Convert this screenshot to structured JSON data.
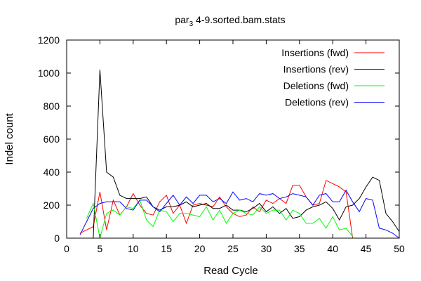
{
  "chart_data": {
    "type": "line",
    "title": "par_3 4-9.sorted.bam.stats",
    "title_main": "par",
    "title_sub": "3",
    "title_rest": " 4-9.sorted.bam.stats",
    "xlabel": "Read Cycle",
    "ylabel": "Indel count",
    "xlim": [
      0,
      50
    ],
    "ylim": [
      0,
      1200
    ],
    "x_ticks": [
      0,
      5,
      10,
      15,
      20,
      25,
      30,
      35,
      40,
      45,
      50
    ],
    "y_ticks": [
      0,
      200,
      400,
      600,
      800,
      1000,
      1200
    ],
    "grid": false,
    "legend_position": "top-right",
    "series": [
      {
        "name": "Insertions (fwd)",
        "color": "#ff0000",
        "x": [
          2,
          3,
          4,
          5,
          6,
          7,
          8,
          9,
          10,
          11,
          12,
          13,
          14,
          15,
          16,
          17,
          18,
          19,
          20,
          21,
          22,
          23,
          24,
          25,
          26,
          27,
          28,
          29,
          30,
          31,
          32,
          33,
          34,
          35,
          36,
          37,
          38,
          39,
          40,
          41,
          42,
          43
        ],
        "y": [
          30,
          50,
          70,
          280,
          50,
          230,
          140,
          190,
          270,
          200,
          150,
          140,
          220,
          260,
          150,
          200,
          90,
          200,
          210,
          200,
          190,
          250,
          190,
          150,
          130,
          140,
          190,
          160,
          230,
          210,
          240,
          210,
          320,
          320,
          250,
          200,
          210,
          350,
          330,
          310,
          280,
          0
        ]
      },
      {
        "name": "Insertions (rev)",
        "color": "#000000",
        "x": [
          4,
          5,
          6,
          7,
          8,
          9,
          10,
          11,
          12,
          13,
          14,
          15,
          16,
          17,
          18,
          19,
          20,
          21,
          22,
          23,
          24,
          25,
          26,
          27,
          28,
          29,
          30,
          31,
          32,
          33,
          34,
          35,
          36,
          37,
          38,
          39,
          40,
          41,
          42,
          43,
          44,
          45,
          46,
          47,
          48,
          49,
          50
        ],
        "y": [
          0,
          1020,
          400,
          370,
          260,
          240,
          240,
          240,
          250,
          190,
          170,
          190,
          190,
          200,
          220,
          190,
          200,
          210,
          180,
          180,
          200,
          170,
          170,
          160,
          180,
          210,
          160,
          190,
          150,
          180,
          120,
          130,
          170,
          190,
          200,
          220,
          180,
          110,
          190,
          200,
          240,
          310,
          370,
          350,
          150,
          100,
          40
        ]
      },
      {
        "name": "Deletions (fwd)",
        "color": "#00ff00",
        "x": [
          3,
          4,
          5,
          6,
          7,
          8,
          9,
          10,
          11,
          12,
          13,
          14,
          15,
          16,
          17,
          18,
          19,
          20,
          21,
          22,
          23,
          24,
          25,
          26,
          27,
          28,
          29,
          30,
          31,
          32,
          33,
          34,
          35,
          36,
          37,
          38,
          39,
          40,
          41,
          42,
          43
        ],
        "y": [
          120,
          210,
          0,
          150,
          170,
          140,
          190,
          180,
          230,
          110,
          70,
          170,
          160,
          100,
          150,
          150,
          140,
          130,
          190,
          110,
          170,
          90,
          150,
          170,
          150,
          140,
          190,
          150,
          170,
          170,
          110,
          170,
          150,
          90,
          90,
          120,
          60,
          130,
          50,
          60,
          10
        ]
      },
      {
        "name": "Deletions (rev)",
        "color": "#0000ff",
        "x": [
          2,
          3,
          4,
          5,
          6,
          7,
          8,
          9,
          10,
          11,
          12,
          13,
          14,
          15,
          16,
          17,
          18,
          19,
          20,
          21,
          22,
          23,
          24,
          25,
          26,
          27,
          28,
          29,
          30,
          31,
          32,
          33,
          34,
          35,
          36,
          37,
          38,
          39,
          40,
          41,
          42,
          43,
          44,
          45,
          46,
          47,
          48,
          49,
          50
        ],
        "y": [
          20,
          100,
          180,
          210,
          220,
          220,
          220,
          180,
          170,
          230,
          230,
          190,
          160,
          210,
          260,
          200,
          250,
          210,
          260,
          260,
          220,
          240,
          210,
          280,
          230,
          240,
          220,
          270,
          260,
          270,
          240,
          250,
          270,
          260,
          250,
          200,
          260,
          270,
          220,
          220,
          290,
          220,
          160,
          240,
          230,
          60,
          50,
          30,
          0
        ]
      }
    ]
  }
}
